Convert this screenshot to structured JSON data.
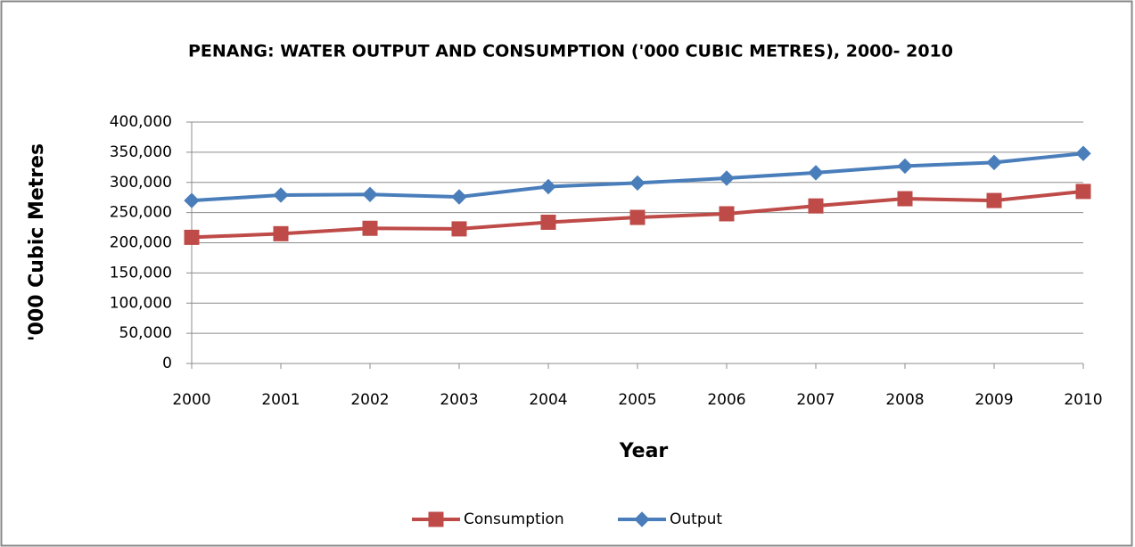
{
  "chart_data": {
    "type": "line",
    "title": "PENANG: WATER OUTPUT AND CONSUMPTION ('000 CUBIC METRES), 2000- 2010",
    "x_label": "Year",
    "y_label": "'000 Cubic Metres",
    "categories": [
      "2000",
      "2001",
      "2002",
      "2003",
      "2004",
      "2005",
      "2006",
      "2007",
      "2008",
      "2009",
      "2010"
    ],
    "series": [
      {
        "name": "Consumption",
        "color": "#be4b48",
        "marker": "square",
        "values": [
          209000,
          215000,
          224000,
          223000,
          234000,
          242000,
          248000,
          261000,
          273000,
          270000,
          285000
        ]
      },
      {
        "name": "Output",
        "color": "#4a7ebb",
        "marker": "diamond",
        "values": [
          270000,
          279000,
          280000,
          276000,
          293000,
          299000,
          307000,
          316000,
          327000,
          333000,
          348000
        ]
      }
    ],
    "ylim": [
      0,
      400000
    ],
    "yticks": [
      0,
      {
        "value": 50000,
        "label": "50,000"
      },
      {
        "value": 100000,
        "label": "100,000"
      },
      {
        "value": 150000,
        "label": "150,000"
      },
      {
        "value": 200000,
        "label": "200,000"
      },
      {
        "value": 250000,
        "label": "250,000"
      },
      {
        "value": 300000,
        "label": "300,000"
      },
      {
        "value": 350000,
        "label": "350,000"
      },
      {
        "value": 400000,
        "label": "400,000"
      }
    ],
    "grid": true,
    "legend": "bottom"
  }
}
